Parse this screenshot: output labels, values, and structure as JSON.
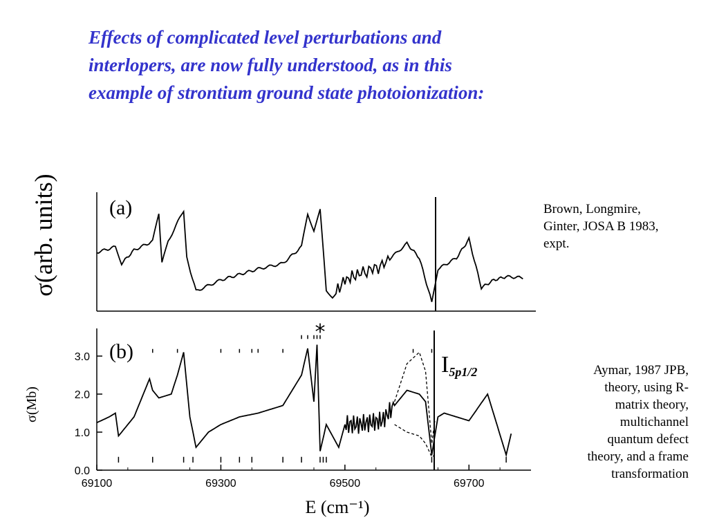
{
  "title_lines": [
    "Effects of complicated level perturbations and",
    "interlopers, are now fully understood, as in this",
    "example of strontium ground state photoionization:"
  ],
  "caption_a_lines": [
    "Brown, Longmire,",
    "Ginter, JOSA B 1983,",
    "expt."
  ],
  "caption_b_lines": [
    "Aymar, 1987 JPB,",
    "theory, using R-",
    "matrix theory,",
    "multichannel",
    "quantum defect",
    "theory, and a frame",
    "transformation"
  ],
  "colors": {
    "title": "#3333cc",
    "ink": "#000000"
  },
  "chart_data": [
    {
      "type": "line",
      "panel_label": "(a)",
      "ylabel": "σ(arb. units)",
      "x_range": [
        69100,
        69800
      ],
      "threshold_x": 69650,
      "series": [
        {
          "x": [
            69100,
            69130,
            69140,
            69160,
            69190,
            69200,
            69205,
            69215,
            69240,
            69245,
            69260,
            69300,
            69330,
            69360,
            69400,
            69430,
            69440,
            69450,
            69460,
            69470,
            69480,
            69500,
            69520,
            69560,
            69600,
            69620,
            69640,
            69650,
            69680,
            69700,
            69720,
            69740,
            69760,
            69790
          ],
          "y": [
            0.5,
            0.55,
            0.4,
            0.52,
            0.6,
            0.85,
            0.4,
            0.6,
            0.88,
            0.45,
            0.15,
            0.25,
            0.3,
            0.35,
            0.4,
            0.55,
            0.85,
            0.7,
            0.88,
            0.15,
            0.1,
            0.25,
            0.3,
            0.38,
            0.58,
            0.45,
            0.05,
            0.35,
            0.45,
            0.62,
            0.18,
            0.25,
            0.28,
            0.27
          ]
        }
      ]
    },
    {
      "type": "line",
      "panel_label": "(b)",
      "ylabel": "σ(Mb)",
      "xlabel": "E (cm⁻¹)",
      "x_ticks": [
        "69100",
        "69300",
        "69500",
        "69700"
      ],
      "y_ticks": [
        "0.0",
        "1.0",
        "2.0",
        "3.0"
      ],
      "ylim": [
        0,
        3.6
      ],
      "x_range": [
        69100,
        69800
      ],
      "threshold_x": 69650,
      "threshold_label": "I",
      "threshold_label_sub": "5p1/2",
      "star_marker": "*",
      "star_x": 69460,
      "series": [
        {
          "name": "solid",
          "x": [
            69100,
            69120,
            69130,
            69135,
            69160,
            69185,
            69190,
            69200,
            69220,
            69230,
            69240,
            69250,
            69260,
            69280,
            69300,
            69330,
            69360,
            69400,
            69430,
            69440,
            69450,
            69455,
            69460,
            69470,
            69490,
            69500,
            69520,
            69560,
            69580,
            69600,
            69620,
            69630,
            69640,
            69650,
            69660,
            69700,
            69730,
            69760,
            69770
          ],
          "y": [
            1.25,
            1.4,
            1.5,
            0.9,
            1.4,
            2.4,
            2.1,
            1.9,
            2.0,
            2.5,
            3.1,
            1.4,
            0.6,
            1.0,
            1.2,
            1.4,
            1.5,
            1.7,
            2.5,
            3.2,
            1.8,
            3.3,
            0.5,
            1.2,
            0.6,
            1.2,
            1.2,
            1.3,
            1.7,
            2.1,
            2.0,
            1.8,
            0.4,
            1.4,
            1.5,
            1.3,
            2.0,
            0.4,
            1.1
          ]
        },
        {
          "name": "dashed-upper",
          "x": [
            69580,
            69600,
            69620,
            69630,
            69640,
            69645
          ],
          "y": [
            1.8,
            2.8,
            3.1,
            2.6,
            0.7,
            1.3
          ]
        },
        {
          "name": "dashed-lower",
          "x": [
            69580,
            69600,
            69620,
            69630,
            69640,
            69645
          ],
          "y": [
            1.2,
            1.0,
            0.9,
            0.7,
            0.35,
            0.4
          ]
        }
      ]
    }
  ]
}
